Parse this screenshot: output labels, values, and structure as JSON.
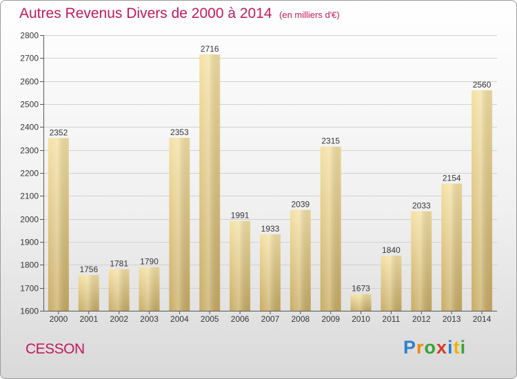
{
  "title": {
    "main": "Autres Revenus Divers de 2000 à 2014",
    "unit": "(en milliers d'€)"
  },
  "commune": "CESSON",
  "logo": {
    "text": "Proxiti",
    "letter_colors": [
      "#2e7fd0",
      "#f08a00",
      "#35a535",
      "#d93b2b",
      "#2e7fd0",
      "#f0b400",
      "#35a535"
    ]
  },
  "colors": {
    "title": "#c2185b",
    "bar_light": "#f5e1a4",
    "bar_dark": "#c8ac64",
    "grid": "#d0d0d0"
  },
  "chart_data": {
    "type": "bar",
    "categories": [
      "2000",
      "2001",
      "2002",
      "2003",
      "2004",
      "2005",
      "2006",
      "2007",
      "2008",
      "2009",
      "2010",
      "2011",
      "2012",
      "2013",
      "2014"
    ],
    "values": [
      2352,
      1756,
      1781,
      1790,
      2353,
      2716,
      1991,
      1933,
      2039,
      2315,
      1673,
      1840,
      2033,
      2154,
      2560
    ],
    "ylim": [
      1600,
      2800
    ],
    "yticks": [
      1600,
      1700,
      1800,
      1900,
      2000,
      2100,
      2200,
      2300,
      2400,
      2500,
      2600,
      2700,
      2800
    ],
    "grid": true,
    "data_labels": true
  }
}
